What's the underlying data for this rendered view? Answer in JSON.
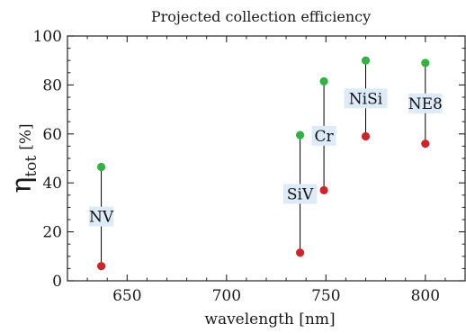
{
  "chart_data": {
    "type": "scatter",
    "title": "Projected collection efficiency",
    "xlabel": "wavelength [nm]",
    "ylabel": {
      "symbol": "η",
      "subscript": "tot",
      "unit": "[%]"
    },
    "xlim": [
      620,
      820
    ],
    "ylim": [
      0,
      100
    ],
    "xticks": [
      650,
      700,
      750,
      800
    ],
    "yticks": [
      0,
      20,
      40,
      60,
      80,
      100
    ],
    "x_minor_step": 10,
    "y_minor_step": 5,
    "grid": false,
    "points": [
      {
        "label": "NV",
        "x": 637,
        "low": 6,
        "high": 46.5
      },
      {
        "label": "SiV",
        "x": 737,
        "low": 11.5,
        "high": 59.5
      },
      {
        "label": "Cr",
        "x": 749,
        "low": 37,
        "high": 81.5
      },
      {
        "label": "NiSi",
        "x": 770,
        "low": 59,
        "high": 90
      },
      {
        "label": "NE8",
        "x": 800,
        "low": 56,
        "high": 89
      }
    ],
    "colors": {
      "high": "#2fb43f",
      "low": "#d42326",
      "connector": "#000000",
      "label_bg": "#dcebf7"
    }
  }
}
